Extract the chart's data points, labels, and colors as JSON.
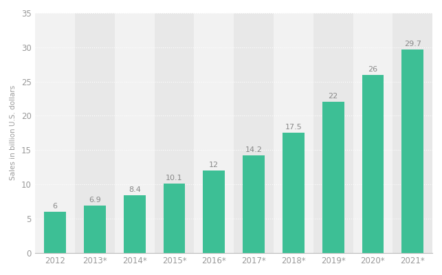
{
  "categories": [
    "2012",
    "2013*",
    "2014*",
    "2015*",
    "2016*",
    "2017*",
    "2018*",
    "2019*",
    "2020*",
    "2021*"
  ],
  "values": [
    6,
    6.9,
    8.4,
    10.1,
    12,
    14.2,
    17.5,
    22,
    26,
    29.7
  ],
  "bar_color": "#3dbf95",
  "ylabel": "Sales in billion U.S. dollars",
  "ylim": [
    0,
    35
  ],
  "yticks": [
    0,
    5,
    10,
    15,
    20,
    25,
    30,
    35
  ],
  "background_color": "#ffffff",
  "plot_bg_color": "#e8e8e8",
  "col_bg_even": "#e8e8e8",
  "col_bg_odd": "#f2f2f2",
  "grid_color": "#ffffff",
  "label_fontsize": 8.5,
  "bar_label_fontsize": 8,
  "ylabel_fontsize": 7.5,
  "xlabel_fontsize": 8.5,
  "tick_color": "#999999",
  "label_color": "#888888"
}
